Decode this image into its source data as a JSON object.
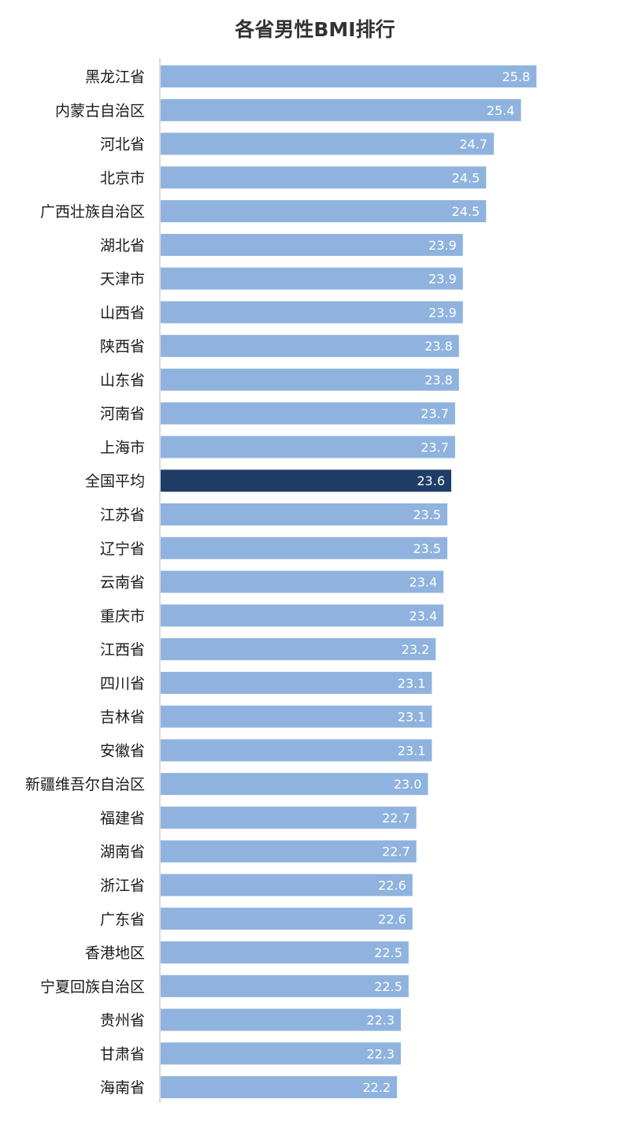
{
  "chart_data": {
    "type": "bar",
    "orientation": "horizontal",
    "title": "各省男性BMI排行",
    "categories": [
      "黑龙江省",
      "内蒙古自治区",
      "河北省",
      "北京市",
      "广西壮族自治区",
      "湖北省",
      "天津市",
      "山西省",
      "陕西省",
      "山东省",
      "河南省",
      "上海市",
      "全国平均",
      "江苏省",
      "辽宁省",
      "云南省",
      "重庆市",
      "江西省",
      "四川省",
      "吉林省",
      "安徽省",
      "新疆维吾尔自治区",
      "福建省",
      "湖南省",
      "浙江省",
      "广东省",
      "香港地区",
      "宁夏回族自治区",
      "贵州省",
      "甘肃省",
      "海南省"
    ],
    "values": [
      25.8,
      25.4,
      24.7,
      24.5,
      24.5,
      23.9,
      23.9,
      23.9,
      23.8,
      23.8,
      23.7,
      23.7,
      23.6,
      23.5,
      23.5,
      23.4,
      23.4,
      23.2,
      23.1,
      23.1,
      23.1,
      23.0,
      22.7,
      22.7,
      22.6,
      22.6,
      22.5,
      22.5,
      22.3,
      22.3,
      22.2
    ],
    "value_labels": [
      "25.8",
      "25.4",
      "24.7",
      "24.5",
      "24.5",
      "23.9",
      "23.9",
      "23.9",
      "23.8",
      "23.8",
      "23.7",
      "23.7",
      "23.6",
      "23.5",
      "23.5",
      "23.4",
      "23.4",
      "23.2",
      "23.1",
      "23.1",
      "23.1",
      "23.0",
      "22.7",
      "22.7",
      "22.6",
      "22.6",
      "22.5",
      "22.5",
      "22.3",
      "22.3",
      "22.2"
    ],
    "highlight_category": "全国平均",
    "colors": {
      "bar": "#8fb3de",
      "highlight": "#1f3d66",
      "axis": "#cfcfcf",
      "label": "#1a1a1a",
      "value_text": "#ffffff"
    },
    "xlabel": "",
    "ylabel": "",
    "grid": false,
    "legend": "none"
  }
}
